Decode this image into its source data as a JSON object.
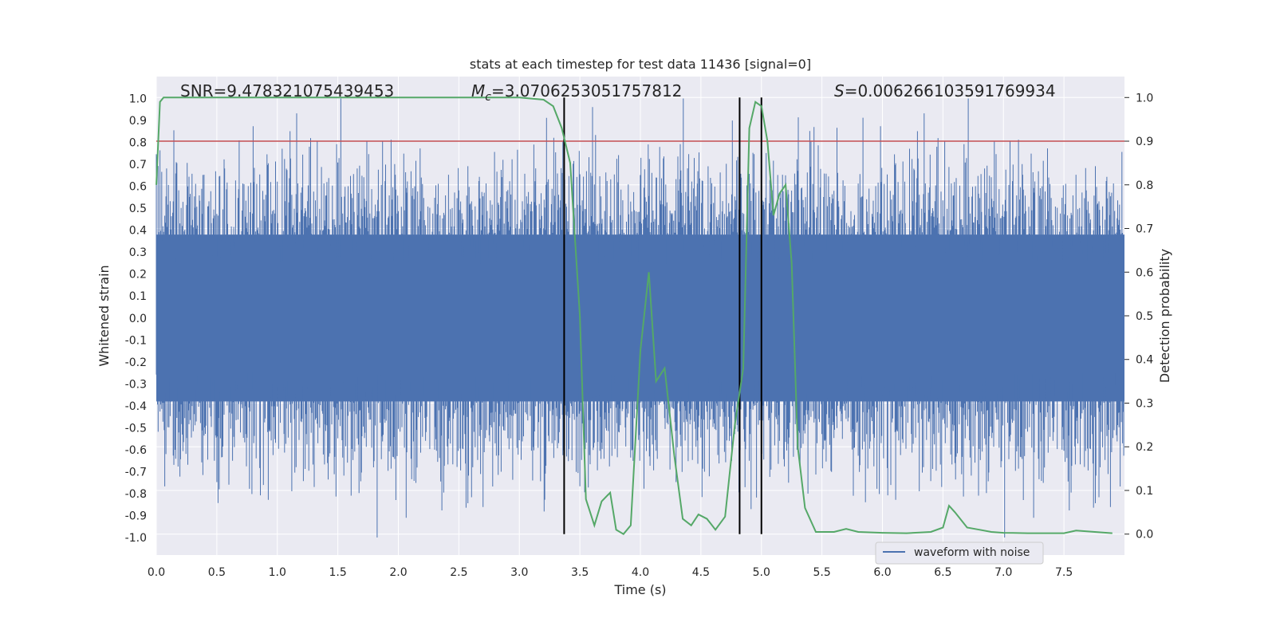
{
  "chart_data": {
    "type": "line",
    "title": "stats at each timestep for test data 11436 [signal=0]",
    "xlabel": "Time (s)",
    "ylabel": "Whitened strain",
    "y2label": "Detection probability",
    "xlim": [
      0.0,
      8.0
    ],
    "ylim": [
      -1.08,
      1.1
    ],
    "y2lim": [
      -0.048,
      1.048
    ],
    "x_ticks": [
      "0.0",
      "0.5",
      "1.0",
      "1.5",
      "2.0",
      "2.5",
      "3.0",
      "3.5",
      "4.0",
      "4.5",
      "5.0",
      "5.5",
      "6.0",
      "6.5",
      "7.0",
      "7.5"
    ],
    "y_ticks": [
      "1.0",
      "0.9",
      "0.8",
      "0.7",
      "0.6",
      "0.5",
      "0.4",
      "0.3",
      "0.2",
      "0.1",
      "0.0",
      "-0.1",
      "-0.2",
      "-0.3",
      "-0.4",
      "-0.5",
      "-0.6",
      "-0.7",
      "-0.8",
      "-0.9",
      "-1.0"
    ],
    "y2_ticks": [
      "1.0",
      "0.9",
      "0.8",
      "0.7",
      "0.6",
      "0.5",
      "0.4",
      "0.3",
      "0.2",
      "0.1",
      "0.0"
    ],
    "grid": true,
    "legend_position": "bottom-right",
    "annotations": {
      "snr": "SNR=9.478321075439453",
      "mc_prefix": "M",
      "mc_sub": "c",
      "mc_value": "=3.0706253051757812",
      "s_prefix": "S",
      "s_value": "=0.006266103591769934"
    },
    "threshold_line": {
      "axis": "y2",
      "value": 0.9,
      "color": "#c44e52"
    },
    "vertical_lines": [
      3.37,
      4.82,
      5.0
    ],
    "series": [
      {
        "name": "waveform with noise",
        "axis": "y",
        "color": "#4c72b0",
        "style": "noise",
        "typical_amplitude": 0.45,
        "peak_amplitude": 1.0
      },
      {
        "axis": "y2",
        "color": "#55a868",
        "x": [
          0.0,
          0.03,
          0.06,
          0.12,
          0.5,
          1.0,
          1.5,
          2.0,
          2.5,
          3.0,
          3.2,
          3.28,
          3.35,
          3.42,
          3.5,
          3.55,
          3.62,
          3.68,
          3.75,
          3.8,
          3.86,
          3.92,
          4.0,
          4.07,
          4.13,
          4.2,
          4.28,
          4.35,
          4.42,
          4.48,
          4.55,
          4.62,
          4.7,
          4.78,
          4.85,
          4.9,
          4.95,
          5.0,
          5.05,
          5.1,
          5.15,
          5.2,
          5.25,
          5.3,
          5.36,
          5.45,
          5.6,
          5.7,
          5.8,
          6.0,
          6.2,
          6.4,
          6.5,
          6.55,
          6.6,
          6.7,
          6.8,
          6.9,
          7.0,
          7.2,
          7.4,
          7.5,
          7.6,
          7.9
        ],
        "y": [
          0.8,
          0.99,
          1.0,
          1.0,
          1.0,
          1.0,
          1.0,
          1.0,
          1.0,
          1.0,
          0.995,
          0.98,
          0.93,
          0.85,
          0.5,
          0.08,
          0.02,
          0.075,
          0.095,
          0.01,
          0.0,
          0.02,
          0.42,
          0.6,
          0.35,
          0.38,
          0.18,
          0.035,
          0.02,
          0.045,
          0.035,
          0.01,
          0.04,
          0.25,
          0.38,
          0.93,
          0.99,
          0.98,
          0.9,
          0.73,
          0.78,
          0.8,
          0.62,
          0.2,
          0.06,
          0.005,
          0.005,
          0.012,
          0.005,
          0.003,
          0.002,
          0.005,
          0.015,
          0.065,
          0.05,
          0.015,
          0.01,
          0.005,
          0.003,
          0.002,
          0.002,
          0.002,
          0.008,
          0.002
        ]
      }
    ]
  }
}
